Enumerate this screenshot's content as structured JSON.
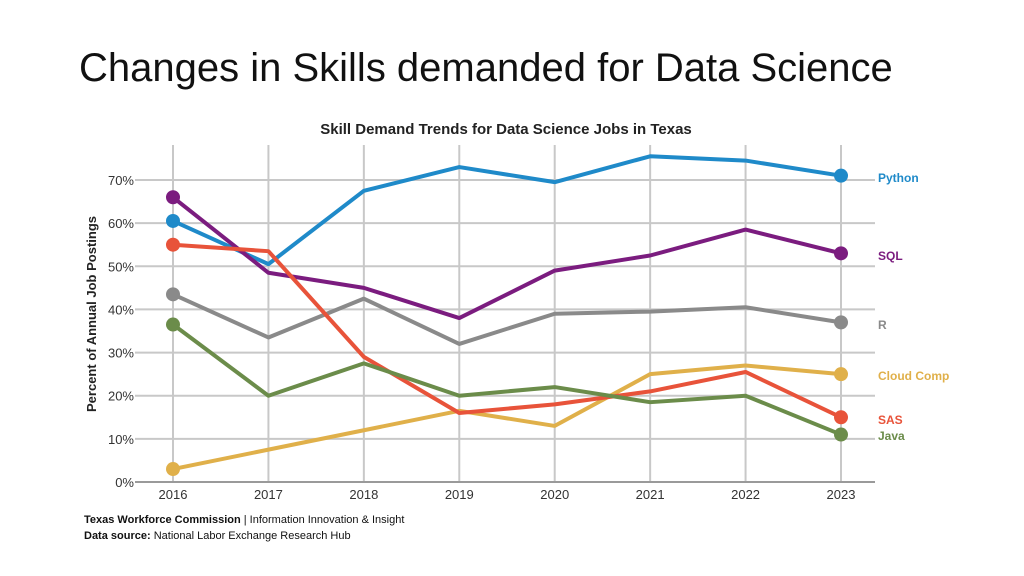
{
  "slide_title": "Changes in Skills demanded for Data Science",
  "footer": {
    "line1_bold": "Texas Workforce Commission",
    "line1_rest": " | Information Innovation & Insight",
    "line2_bold": "Data source:",
    "line2_rest": " National Labor Exchange Research Hub"
  },
  "chart_data": {
    "type": "line",
    "title": "Skill Demand Trends for Data Science Jobs in Texas",
    "ylabel": "Percent of Annual Job Postings",
    "xlabel": "",
    "x": [
      2016,
      2017,
      2018,
      2019,
      2020,
      2021,
      2022,
      2023
    ],
    "ylim": [
      0,
      70
    ],
    "yticks": [
      0,
      10,
      20,
      30,
      40,
      50,
      60,
      70
    ],
    "ytick_labels": [
      "0%",
      "10%",
      "20%",
      "30%",
      "40%",
      "50%",
      "60%",
      "70%"
    ],
    "grid": true,
    "legend_placement": "right, inline at line ends",
    "series": [
      {
        "name": "Python",
        "color": "#1f8ac9",
        "values": [
          60.5,
          50.5,
          67.5,
          73,
          69.5,
          75.5,
          74.5,
          71
        ]
      },
      {
        "name": "SQL",
        "color": "#7b1c7f",
        "values": [
          66,
          48.5,
          45,
          38,
          49,
          52.5,
          58.5,
          53
        ]
      },
      {
        "name": "R",
        "color": "#8a8a8a",
        "values": [
          43.5,
          33.5,
          42.5,
          32,
          39,
          39.5,
          40.5,
          37
        ]
      },
      {
        "name": "Cloud Comp",
        "color": "#e0b04a",
        "values": [
          3,
          7.5,
          12,
          16.5,
          13,
          25,
          27,
          25
        ]
      },
      {
        "name": "SAS",
        "color": "#e8533a",
        "values": [
          55,
          53.5,
          29,
          16,
          18,
          21,
          25.5,
          15
        ]
      },
      {
        "name": "Java",
        "color": "#6b8c4a",
        "values": [
          36.5,
          20,
          27.5,
          20,
          22,
          18.5,
          20,
          11
        ]
      }
    ]
  }
}
